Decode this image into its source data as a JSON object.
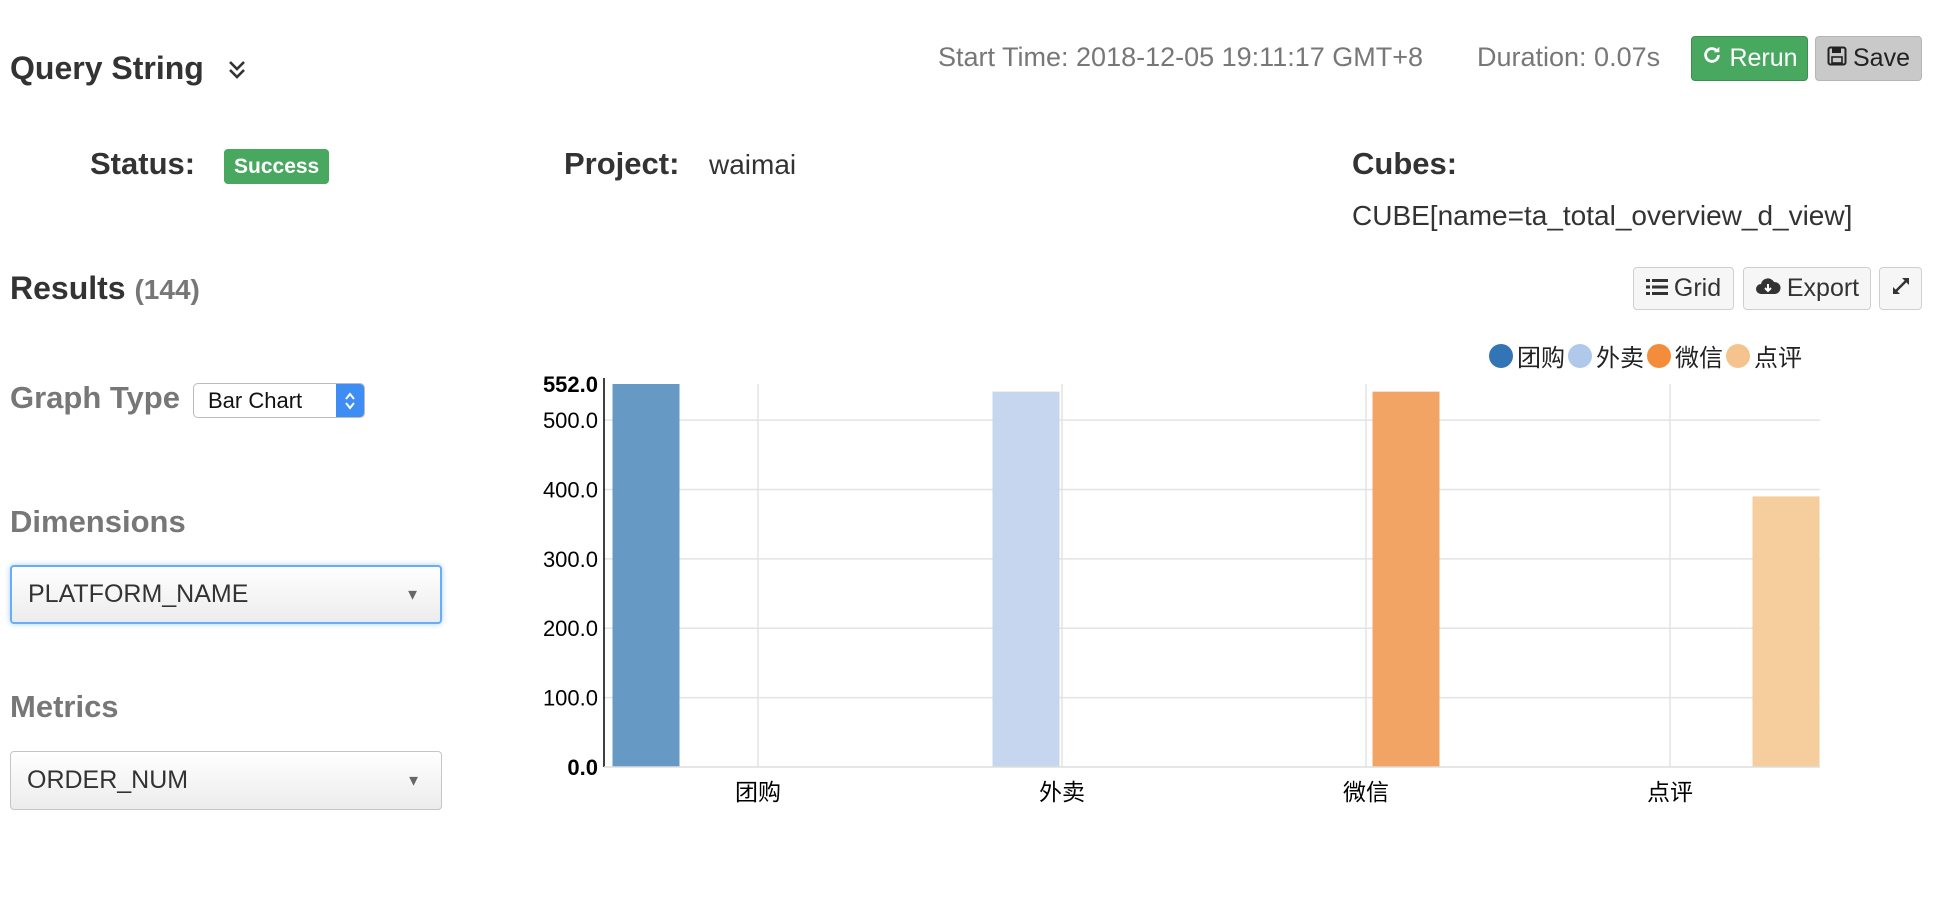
{
  "header": {
    "title": "Query String",
    "start_time": "Start Time: 2018-12-05 19:11:17 GMT+8",
    "duration": "Duration: 0.07s",
    "rerun_label": "Rerun",
    "save_label": "Save"
  },
  "info": {
    "status_label": "Status:",
    "status_value": "Success",
    "project_label": "Project:",
    "project_value": "waimai",
    "cubes_label": "Cubes:",
    "cubes_value": "CUBE[name=ta_total_overview_d_view]"
  },
  "results": {
    "title": "Results",
    "count": "(144)",
    "grid_label": "Grid",
    "export_label": "Export"
  },
  "controls": {
    "graph_type_label": "Graph Type",
    "graph_type_value": "Bar Chart",
    "dimensions_label": "Dimensions",
    "dimensions_value": "PLATFORM_NAME",
    "metrics_label": "Metrics",
    "metrics_value": "ORDER_NUM"
  },
  "colors": {
    "accent_green": "#48a860",
    "series": [
      "#6699c4",
      "#c5d6ee",
      "#f2a465",
      "#f6cd9c"
    ],
    "legend_dots": [
      "#3274b5",
      "#b0c8e9",
      "#f38d3b",
      "#f5c48e"
    ]
  },
  "chart_data": {
    "type": "bar",
    "categories": [
      "团购",
      "外卖",
      "微信",
      "点评"
    ],
    "series": [
      {
        "name": "团购",
        "values": [
          552,
          null,
          null,
          null
        ]
      },
      {
        "name": "外卖",
        "values": [
          null,
          541,
          null,
          null
        ]
      },
      {
        "name": "微信",
        "values": [
          null,
          null,
          541,
          null
        ]
      },
      {
        "name": "点评",
        "values": [
          null,
          null,
          null,
          390
        ]
      }
    ],
    "y_ticks": [
      "0.0",
      "100.0",
      "200.0",
      "300.0",
      "400.0",
      "500.0",
      "552.0"
    ],
    "ylim": [
      0,
      552
    ],
    "grid": true,
    "legend_position": "top-right"
  }
}
